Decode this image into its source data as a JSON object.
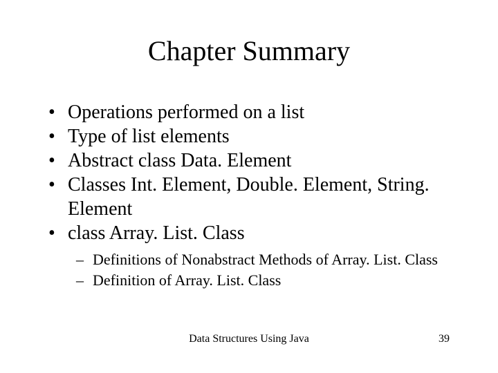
{
  "title": "Chapter Summary",
  "bullets": [
    "Operations performed on a list",
    "Type of list elements",
    "Abstract class Data. Element",
    "Classes Int. Element, Double. Element, String. Element",
    "class Array. List. Class"
  ],
  "subbullets": [
    "Definitions of Nonabstract Methods of Array. List. Class",
    "Definition of Array. List. Class"
  ],
  "footer": {
    "center": "Data Structures Using Java",
    "page": "39"
  },
  "style": {
    "background_color": "#ffffff",
    "text_color": "#000000",
    "title_fontsize": 40,
    "bullet_fontsize": 28,
    "subbullet_fontsize": 22,
    "footer_fontsize": 16,
    "font_family": "Times New Roman"
  }
}
